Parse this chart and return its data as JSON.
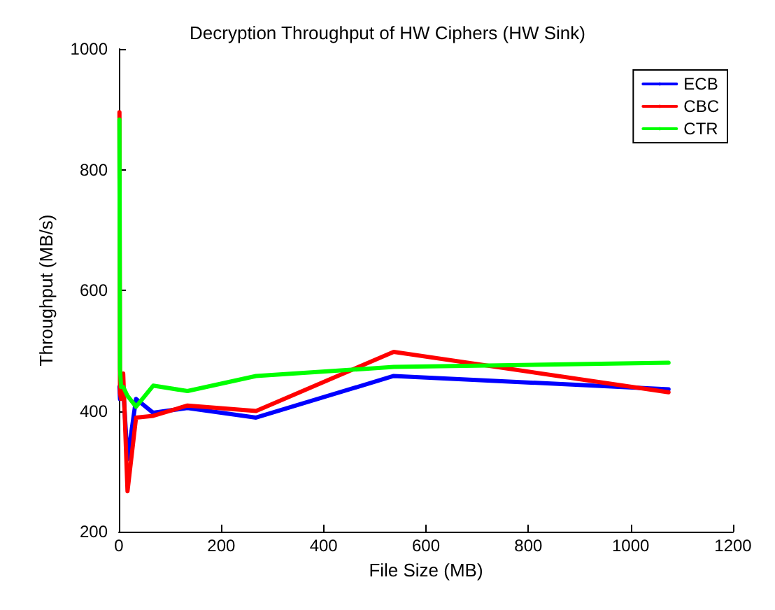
{
  "chart_data": {
    "type": "line",
    "title": "Decryption Throughput of HW Ciphers (HW Sink)",
    "xlabel": "File Size (MB)",
    "ylabel": "Throughput (MB/s)",
    "x": [
      1.05,
      2.1,
      4.2,
      8.4,
      16.8,
      33.5,
      67,
      134,
      268,
      537,
      1074
    ],
    "series": [
      {
        "name": "ECB",
        "color": "#0000ff",
        "values": [
          440,
          420,
          430,
          440,
          320,
          420,
          397,
          405,
          389,
          458,
          436
        ]
      },
      {
        "name": "CBC",
        "color": "#ff0000",
        "values": [
          895,
          430,
          420,
          462,
          267,
          389,
          392,
          409,
          400,
          498,
          431
        ]
      },
      {
        "name": "CTR",
        "color": "#00ff00",
        "values": [
          883,
          470,
          440,
          440,
          425,
          407,
          442,
          433,
          458,
          473,
          480
        ]
      }
    ],
    "xlim": [
      0,
      1200
    ],
    "xticks": [
      0,
      200,
      400,
      600,
      800,
      1000,
      1200
    ],
    "ylim": [
      200,
      1000
    ],
    "yticks": [
      200,
      400,
      600,
      800,
      1000
    ],
    "legend": "top right",
    "grid": false,
    "marker": "none",
    "line_style": "solid"
  }
}
